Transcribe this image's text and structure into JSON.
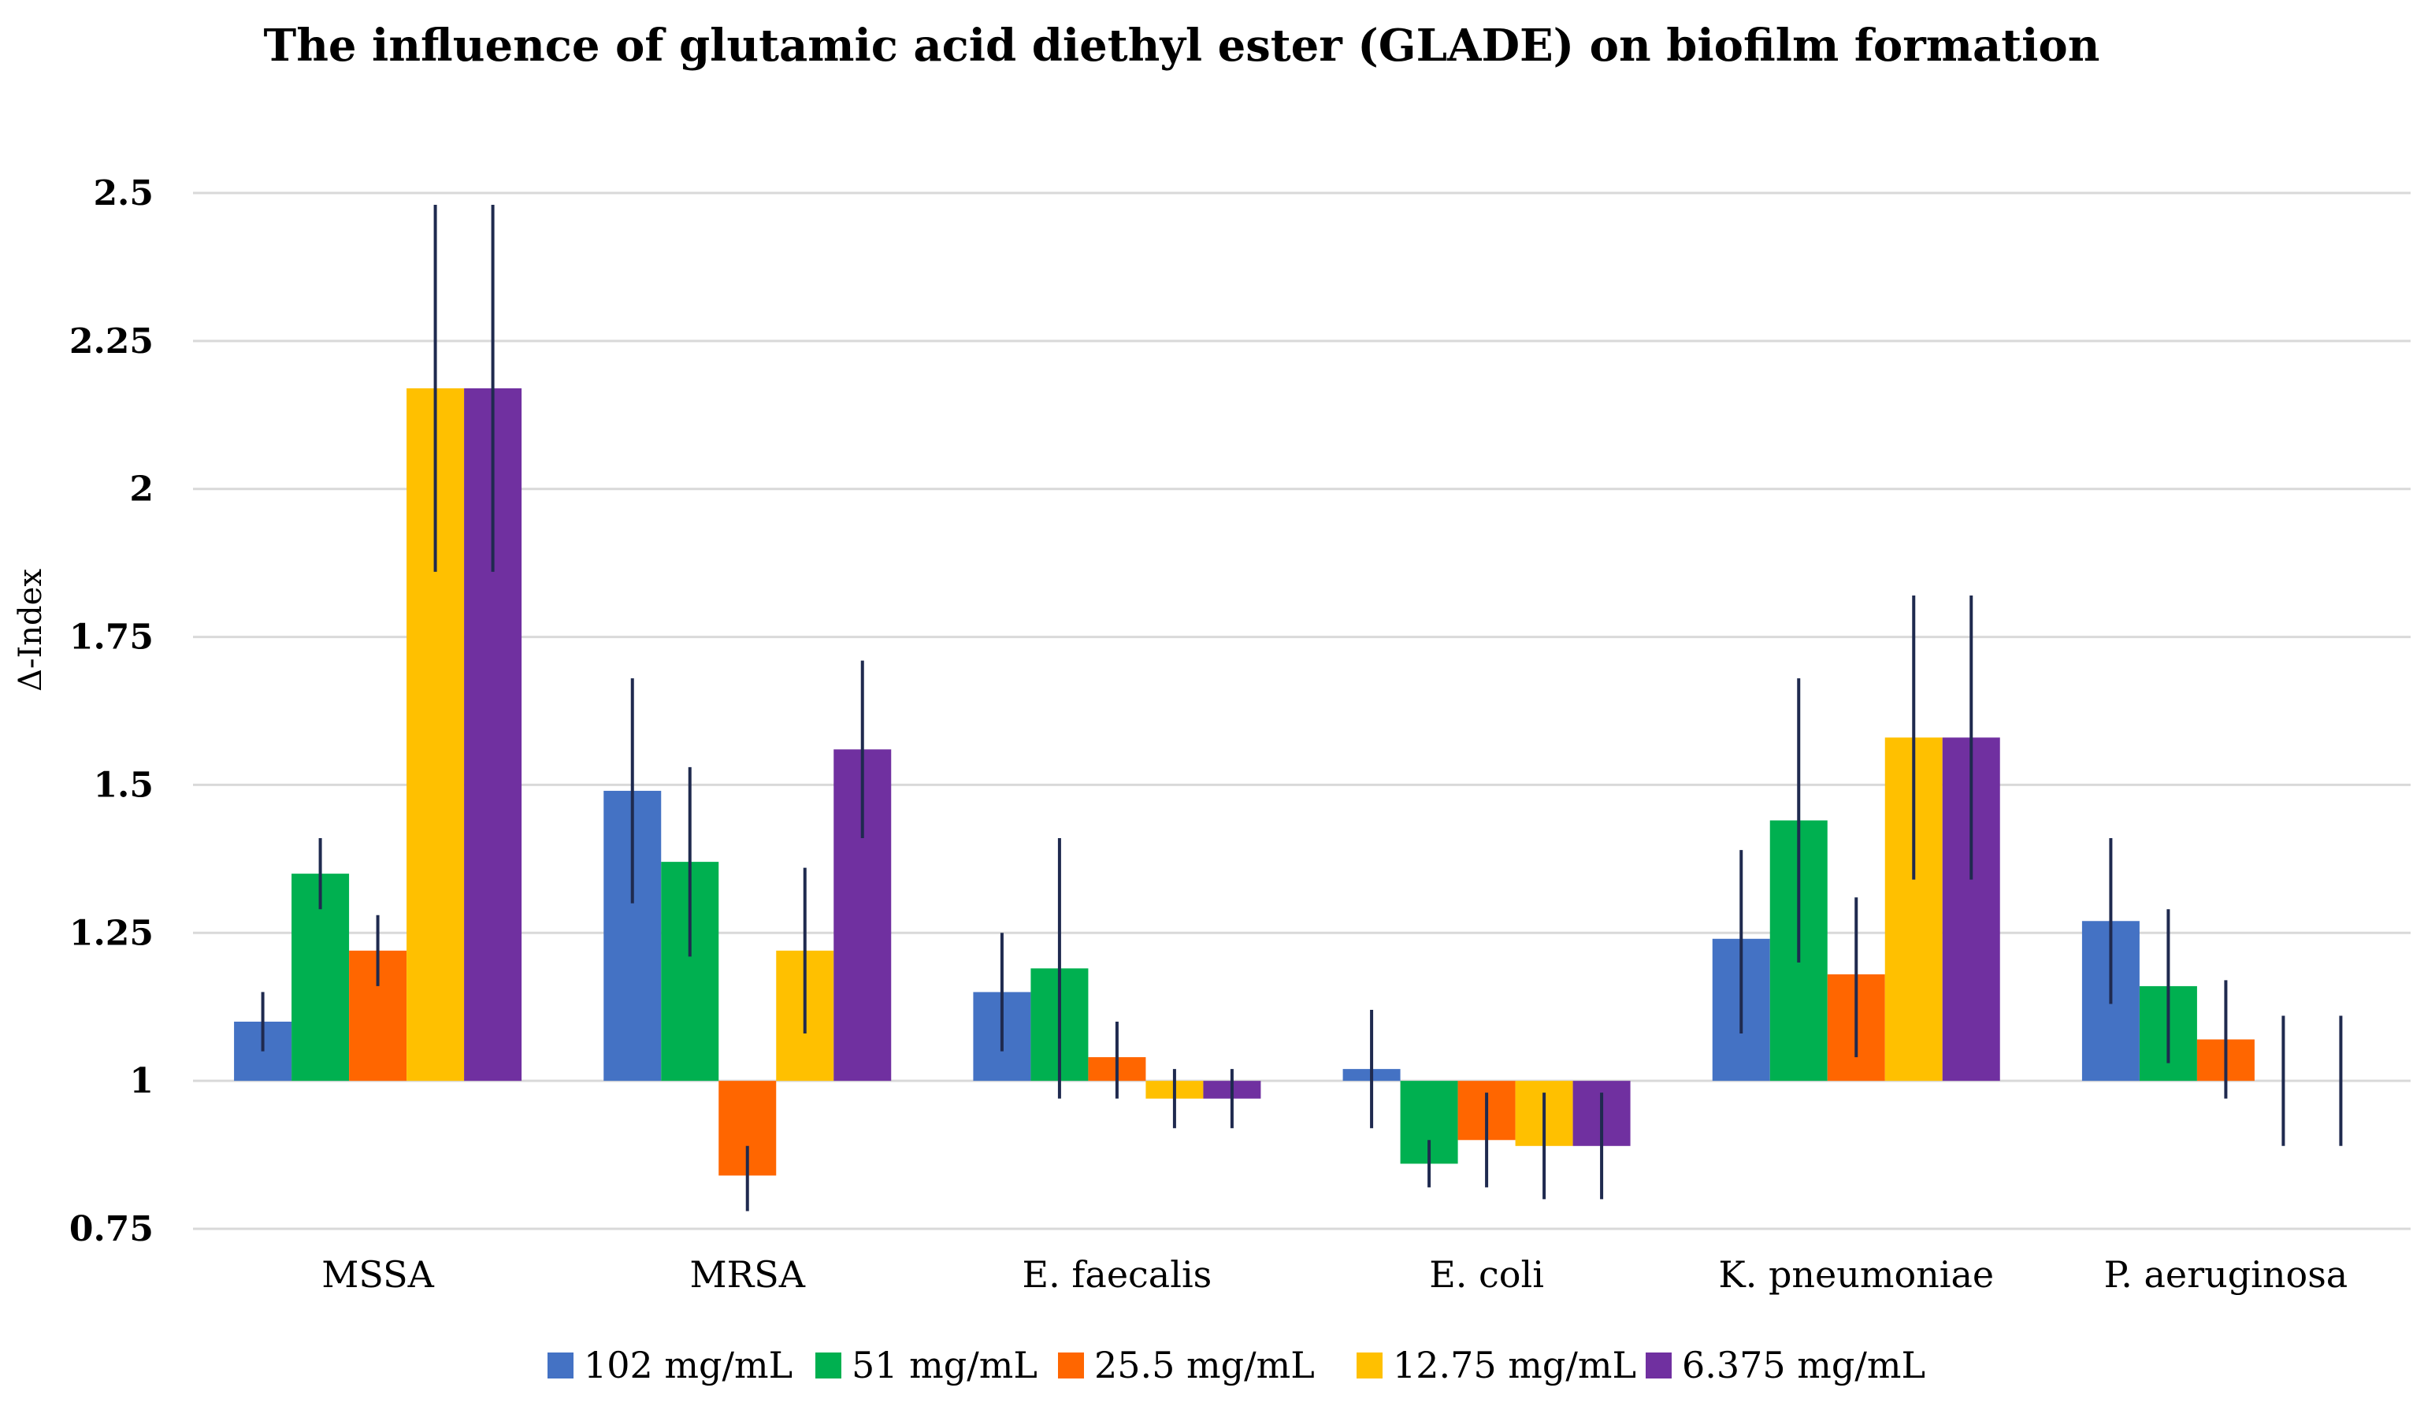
{
  "chart_data": {
    "type": "bar",
    "title": "The influence of glutamic acid diethyl ester (GLADE) on biofilm formation",
    "xlabel": "",
    "ylabel": "Δ-Index",
    "ylim": [
      0.75,
      2.5
    ],
    "baseline": 1,
    "yticks": [
      0.75,
      1,
      1.25,
      1.5,
      1.75,
      2,
      2.25,
      2.5
    ],
    "ytick_labels": [
      "0.75",
      "1",
      "1.25",
      "1.5",
      "1.75",
      "2",
      "2.25",
      "2.5"
    ],
    "grid": true,
    "legend_position": "bottom",
    "categories": [
      "MSSA",
      "MRSA",
      "E. faecalis",
      "E. coli",
      "K. pneumoniae",
      "P. aeruginosa"
    ],
    "series": [
      {
        "name": "102 mg/mL",
        "color": "#4472C4",
        "values": [
          1.1,
          1.49,
          1.15,
          1.02,
          1.24,
          1.27
        ],
        "error_low": [
          1.05,
          1.3,
          1.05,
          0.92,
          1.08,
          1.13
        ],
        "error_high": [
          1.15,
          1.68,
          1.25,
          1.12,
          1.39,
          1.41
        ]
      },
      {
        "name": "51 mg/mL",
        "color": "#00B050",
        "values": [
          1.35,
          1.37,
          1.19,
          0.86,
          1.44,
          1.16
        ],
        "error_low": [
          1.29,
          1.21,
          0.97,
          0.82,
          1.2,
          1.03
        ],
        "error_high": [
          1.41,
          1.53,
          1.41,
          0.9,
          1.68,
          1.29
        ]
      },
      {
        "name": "25.5 mg/mL",
        "color": "#FF6600",
        "values": [
          1.22,
          0.84,
          1.04,
          0.9,
          1.18,
          1.07
        ],
        "error_low": [
          1.16,
          0.78,
          0.97,
          0.82,
          1.04,
          0.97
        ],
        "error_high": [
          1.28,
          0.89,
          1.1,
          0.98,
          1.31,
          1.17
        ]
      },
      {
        "name": "12.75 mg/mL",
        "color": "#FFC000",
        "values": [
          2.17,
          1.22,
          0.97,
          0.89,
          1.58,
          1.0
        ],
        "error_low": [
          1.86,
          1.08,
          0.92,
          0.8,
          1.34,
          0.89
        ],
        "error_high": [
          2.48,
          1.36,
          1.02,
          0.98,
          1.82,
          1.11
        ]
      },
      {
        "name": "6.375 mg/mL",
        "color": "#7030A0",
        "values": [
          2.17,
          1.56,
          0.97,
          0.89,
          1.58,
          1.0
        ],
        "error_low": [
          1.86,
          1.41,
          0.92,
          0.8,
          1.34,
          0.89
        ],
        "error_high": [
          2.48,
          1.71,
          1.02,
          0.98,
          1.82,
          1.11
        ]
      }
    ],
    "error_bar_color": "#1F2A4F",
    "grid_color": "#D9D9D9"
  }
}
